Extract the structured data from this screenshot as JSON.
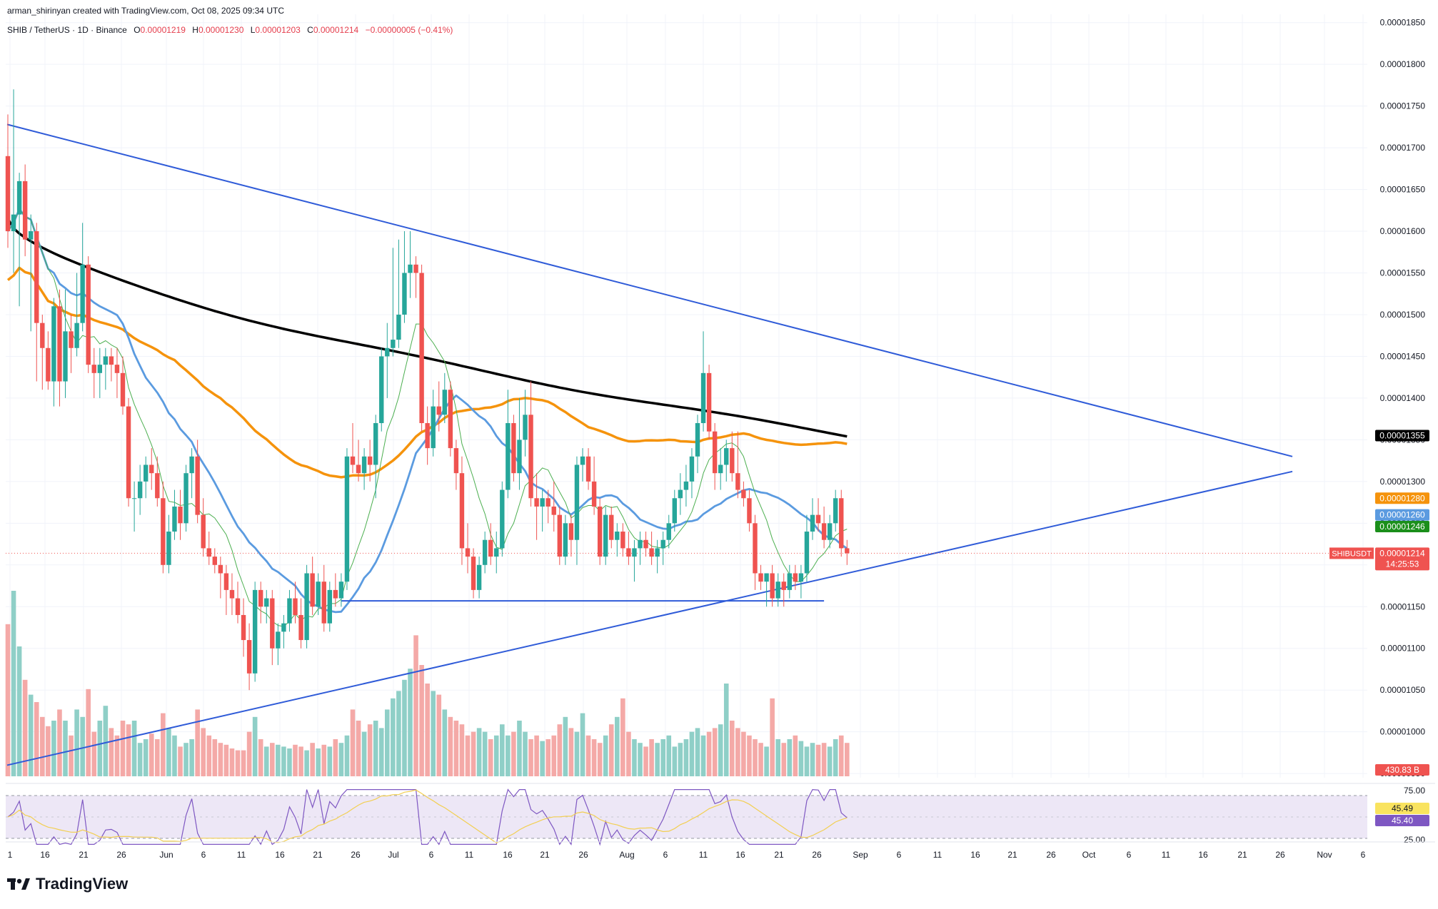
{
  "header": {
    "credit": "arman_shirinyan created with TradingView.com, Oct 08, 2025 09:34 UTC",
    "symbol": "SHIB / TetherUS · 1D · Binance",
    "ohlc": {
      "o_label": "O",
      "o": "0.00001219",
      "h_label": "H",
      "h": "0.00001230",
      "l_label": "L",
      "l": "0.00001203",
      "c_label": "C",
      "c": "0.00001214",
      "change": "−0.00000005 (−0.41%)"
    }
  },
  "brand": {
    "name": "TradingView"
  },
  "colors": {
    "up": "#26a69a",
    "down": "#ef5350",
    "vol_up": "#8fcfc7",
    "vol_down": "#f4a9a7",
    "ma200": "#000000",
    "ma100": "#f5930c",
    "ma50": "#5b9be0",
    "ma20": "#4caf50",
    "trend": "#2f5bd8",
    "rsi": "#7e57c2",
    "rsi_ma": "#f2cf52",
    "rsi_band": "#ede7f6"
  },
  "chart_data": {
    "type": "candlestick",
    "symbol": "SHIBUSDT",
    "timeframe": "1D",
    "exchange": "Binance",
    "ylim": [
      9.45e-06,
      1.86e-05
    ],
    "y_ticks": [
      "0.00001850",
      "0.00001800",
      "0.00001750",
      "0.00001700",
      "0.00001650",
      "0.00001600",
      "0.00001550",
      "0.00001500",
      "0.00001450",
      "0.00001400",
      "0.00001350",
      "0.00001300",
      "0.00001250",
      "0.00001200",
      "0.00001150",
      "0.00001100",
      "0.00001050",
      "0.00001000",
      "0.00000950"
    ],
    "x_ticks": [
      "1",
      "16",
      "21",
      "26",
      "Jun",
      "6",
      "11",
      "16",
      "21",
      "26",
      "Jul",
      "6",
      "11",
      "16",
      "21",
      "26",
      "Aug",
      "6",
      "11",
      "16",
      "21",
      "26",
      "Sep",
      "6",
      "11",
      "16",
      "21",
      "26",
      "Oct",
      "6",
      "11",
      "16",
      "21",
      "26",
      "Nov",
      "6"
    ],
    "price_badges": [
      {
        "label": "0.00001355",
        "value": 1.355e-05,
        "color": "#000000"
      },
      {
        "label": "0.00001280",
        "value": 1.28e-05,
        "color": "#f5930c"
      },
      {
        "label": "0.00001260",
        "value": 1.26e-05,
        "color": "#5b9be0"
      },
      {
        "label": "0.00001246",
        "value": 1.246e-05,
        "color": "#1b8f1b"
      }
    ],
    "last_price": {
      "symbol": "SHIBUSDT",
      "price": "0.00001214",
      "value": 1.214e-05,
      "countdown": "14:25:53"
    },
    "volume_label": "430.83 B",
    "candles": [
      {
        "o": 1.69e-05,
        "h": 1.74e-05,
        "l": 1.58e-05,
        "c": 1.6e-05
      },
      {
        "o": 1.6e-05,
        "h": 1.77e-05,
        "l": 1.55e-05,
        "c": 1.62e-05
      },
      {
        "o": 1.62e-05,
        "h": 1.67e-05,
        "l": 1.51e-05,
        "c": 1.66e-05
      },
      {
        "o": 1.66e-05,
        "h": 1.68e-05,
        "l": 1.57e-05,
        "c": 1.59e-05
      },
      {
        "o": 1.59e-05,
        "h": 1.62e-05,
        "l": 1.48e-05,
        "c": 1.6e-05
      },
      {
        "o": 1.6e-05,
        "h": 1.61e-05,
        "l": 1.42e-05,
        "c": 1.49e-05
      },
      {
        "o": 1.49e-05,
        "h": 1.5e-05,
        "l": 1.41e-05,
        "c": 1.46e-05
      },
      {
        "o": 1.46e-05,
        "h": 1.48e-05,
        "l": 1.41e-05,
        "c": 1.42e-05
      },
      {
        "o": 1.42e-05,
        "h": 1.52e-05,
        "l": 1.39e-05,
        "c": 1.51e-05
      },
      {
        "o": 1.51e-05,
        "h": 1.53e-05,
        "l": 1.39e-05,
        "c": 1.42e-05
      },
      {
        "o": 1.42e-05,
        "h": 1.53e-05,
        "l": 1.4e-05,
        "c": 1.48e-05
      },
      {
        "o": 1.48e-05,
        "h": 1.5e-05,
        "l": 1.43e-05,
        "c": 1.46e-05
      },
      {
        "o": 1.46e-05,
        "h": 1.55e-05,
        "l": 1.45e-05,
        "c": 1.49e-05
      },
      {
        "o": 1.49e-05,
        "h": 1.61e-05,
        "l": 1.48e-05,
        "c": 1.56e-05
      },
      {
        "o": 1.56e-05,
        "h": 1.57e-05,
        "l": 1.43e-05,
        "c": 1.44e-05
      },
      {
        "o": 1.44e-05,
        "h": 1.46e-05,
        "l": 1.4e-05,
        "c": 1.43e-05
      },
      {
        "o": 1.43e-05,
        "h": 1.46e-05,
        "l": 1.4e-05,
        "c": 1.44e-05
      },
      {
        "o": 1.44e-05,
        "h": 1.46e-05,
        "l": 1.41e-05,
        "c": 1.45e-05
      },
      {
        "o": 1.45e-05,
        "h": 1.46e-05,
        "l": 1.42e-05,
        "c": 1.44e-05
      },
      {
        "o": 1.44e-05,
        "h": 1.46e-05,
        "l": 1.4e-05,
        "c": 1.43e-05
      },
      {
        "o": 1.43e-05,
        "h": 1.45e-05,
        "l": 1.38e-05,
        "c": 1.39e-05
      },
      {
        "o": 1.39e-05,
        "h": 1.4e-05,
        "l": 1.27e-05,
        "c": 1.28e-05
      },
      {
        "o": 1.28e-05,
        "h": 1.3e-05,
        "l": 1.24e-05,
        "c": 1.28e-05
      },
      {
        "o": 1.28e-05,
        "h": 1.32e-05,
        "l": 1.26e-05,
        "c": 1.3e-05
      },
      {
        "o": 1.3e-05,
        "h": 1.33e-05,
        "l": 1.28e-05,
        "c": 1.32e-05
      },
      {
        "o": 1.32e-05,
        "h": 1.34e-05,
        "l": 1.29e-05,
        "c": 1.31e-05
      },
      {
        "o": 1.31e-05,
        "h": 1.33e-05,
        "l": 1.27e-05,
        "c": 1.28e-05
      },
      {
        "o": 1.28e-05,
        "h": 1.3e-05,
        "l": 1.19e-05,
        "c": 1.2e-05
      },
      {
        "o": 1.2e-05,
        "h": 1.26e-05,
        "l": 1.19e-05,
        "c": 1.24e-05
      },
      {
        "o": 1.24e-05,
        "h": 1.29e-05,
        "l": 1.23e-05,
        "c": 1.27e-05
      },
      {
        "o": 1.27e-05,
        "h": 1.29e-05,
        "l": 1.23e-05,
        "c": 1.25e-05
      },
      {
        "o": 1.25e-05,
        "h": 1.32e-05,
        "l": 1.24e-05,
        "c": 1.31e-05
      },
      {
        "o": 1.31e-05,
        "h": 1.34e-05,
        "l": 1.28e-05,
        "c": 1.33e-05
      },
      {
        "o": 1.33e-05,
        "h": 1.35e-05,
        "l": 1.25e-05,
        "c": 1.26e-05
      },
      {
        "o": 1.26e-05,
        "h": 1.28e-05,
        "l": 1.21e-05,
        "c": 1.22e-05
      },
      {
        "o": 1.22e-05,
        "h": 1.24e-05,
        "l": 1.2e-05,
        "c": 1.21e-05
      },
      {
        "o": 1.21e-05,
        "h": 1.22e-05,
        "l": 1.19e-05,
        "c": 1.2e-05
      },
      {
        "o": 1.2e-05,
        "h": 1.21e-05,
        "l": 1.16e-05,
        "c": 1.19e-05
      },
      {
        "o": 1.19e-05,
        "h": 1.2e-05,
        "l": 1.14e-05,
        "c": 1.17e-05
      },
      {
        "o": 1.17e-05,
        "h": 1.19e-05,
        "l": 1.14e-05,
        "c": 1.16e-05
      },
      {
        "o": 1.16e-05,
        "h": 1.18e-05,
        "l": 1.13e-05,
        "c": 1.14e-05
      },
      {
        "o": 1.14e-05,
        "h": 1.16e-05,
        "l": 1.09e-05,
        "c": 1.11e-05
      },
      {
        "o": 1.11e-05,
        "h": 1.13e-05,
        "l": 1.05e-05,
        "c": 1.07e-05
      },
      {
        "o": 1.07e-05,
        "h": 1.18e-05,
        "l": 1.06e-05,
        "c": 1.17e-05
      },
      {
        "o": 1.17e-05,
        "h": 1.18e-05,
        "l": 1.13e-05,
        "c": 1.15e-05
      },
      {
        "o": 1.15e-05,
        "h": 1.17e-05,
        "l": 1.13e-05,
        "c": 1.16e-05
      },
      {
        "o": 1.16e-05,
        "h": 1.17e-05,
        "l": 1.08e-05,
        "c": 1.1e-05
      },
      {
        "o": 1.1e-05,
        "h": 1.13e-05,
        "l": 1.08e-05,
        "c": 1.12e-05
      },
      {
        "o": 1.12e-05,
        "h": 1.14e-05,
        "l": 1.1e-05,
        "c": 1.13e-05
      },
      {
        "o": 1.13e-05,
        "h": 1.17e-05,
        "l": 1.12e-05,
        "c": 1.16e-05
      },
      {
        "o": 1.16e-05,
        "h": 1.18e-05,
        "l": 1.13e-05,
        "c": 1.14e-05
      },
      {
        "o": 1.14e-05,
        "h": 1.16e-05,
        "l": 1.1e-05,
        "c": 1.11e-05
      },
      {
        "o": 1.11e-05,
        "h": 1.2e-05,
        "l": 1.1e-05,
        "c": 1.19e-05
      },
      {
        "o": 1.19e-05,
        "h": 1.21e-05,
        "l": 1.14e-05,
        "c": 1.15e-05
      },
      {
        "o": 1.15e-05,
        "h": 1.19e-05,
        "l": 1.14e-05,
        "c": 1.18e-05
      },
      {
        "o": 1.18e-05,
        "h": 1.2e-05,
        "l": 1.12e-05,
        "c": 1.13e-05
      },
      {
        "o": 1.13e-05,
        "h": 1.18e-05,
        "l": 1.12e-05,
        "c": 1.17e-05
      },
      {
        "o": 1.17e-05,
        "h": 1.19e-05,
        "l": 1.15e-05,
        "c": 1.16e-05
      },
      {
        "o": 1.16e-05,
        "h": 1.19e-05,
        "l": 1.15e-05,
        "c": 1.18e-05
      },
      {
        "o": 1.18e-05,
        "h": 1.34e-05,
        "l": 1.17e-05,
        "c": 1.33e-05
      },
      {
        "o": 1.33e-05,
        "h": 1.37e-05,
        "l": 1.31e-05,
        "c": 1.32e-05
      },
      {
        "o": 1.32e-05,
        "h": 1.35e-05,
        "l": 1.3e-05,
        "c": 1.31e-05
      },
      {
        "o": 1.31e-05,
        "h": 1.34e-05,
        "l": 1.29e-05,
        "c": 1.33e-05
      },
      {
        "o": 1.33e-05,
        "h": 1.35e-05,
        "l": 1.3e-05,
        "c": 1.32e-05
      },
      {
        "o": 1.32e-05,
        "h": 1.38e-05,
        "l": 1.28e-05,
        "c": 1.37e-05
      },
      {
        "o": 1.37e-05,
        "h": 1.46e-05,
        "l": 1.36e-05,
        "c": 1.45e-05
      },
      {
        "o": 1.45e-05,
        "h": 1.49e-05,
        "l": 1.4e-05,
        "c": 1.46e-05
      },
      {
        "o": 1.46e-05,
        "h": 1.58e-05,
        "l": 1.45e-05,
        "c": 1.47e-05
      },
      {
        "o": 1.47e-05,
        "h": 1.59e-05,
        "l": 1.46e-05,
        "c": 1.5e-05
      },
      {
        "o": 1.5e-05,
        "h": 1.6e-05,
        "l": 1.49e-05,
        "c": 1.55e-05
      },
      {
        "o": 1.55e-05,
        "h": 1.6e-05,
        "l": 1.52e-05,
        "c": 1.56e-05
      },
      {
        "o": 1.56e-05,
        "h": 1.57e-05,
        "l": 1.52e-05,
        "c": 1.55e-05
      },
      {
        "o": 1.55e-05,
        "h": 1.56e-05,
        "l": 1.36e-05,
        "c": 1.37e-05
      },
      {
        "o": 1.37e-05,
        "h": 1.39e-05,
        "l": 1.32e-05,
        "c": 1.34e-05
      },
      {
        "o": 1.34e-05,
        "h": 1.41e-05,
        "l": 1.33e-05,
        "c": 1.39e-05
      },
      {
        "o": 1.39e-05,
        "h": 1.42e-05,
        "l": 1.36e-05,
        "c": 1.38e-05
      },
      {
        "o": 1.38e-05,
        "h": 1.43e-05,
        "l": 1.37e-05,
        "c": 1.41e-05
      },
      {
        "o": 1.41e-05,
        "h": 1.42e-05,
        "l": 1.33e-05,
        "c": 1.34e-05
      },
      {
        "o": 1.34e-05,
        "h": 1.35e-05,
        "l": 1.29e-05,
        "c": 1.31e-05
      },
      {
        "o": 1.31e-05,
        "h": 1.33e-05,
        "l": 1.2e-05,
        "c": 1.22e-05
      },
      {
        "o": 1.22e-05,
        "h": 1.25e-05,
        "l": 1.19e-05,
        "c": 1.21e-05
      },
      {
        "o": 1.21e-05,
        "h": 1.22e-05,
        "l": 1.16e-05,
        "c": 1.17e-05
      },
      {
        "o": 1.17e-05,
        "h": 1.21e-05,
        "l": 1.16e-05,
        "c": 1.2e-05
      },
      {
        "o": 1.2e-05,
        "h": 1.24e-05,
        "l": 1.19e-05,
        "c": 1.23e-05
      },
      {
        "o": 1.23e-05,
        "h": 1.25e-05,
        "l": 1.2e-05,
        "c": 1.21e-05
      },
      {
        "o": 1.21e-05,
        "h": 1.24e-05,
        "l": 1.19e-05,
        "c": 1.22e-05
      },
      {
        "o": 1.22e-05,
        "h": 1.3e-05,
        "l": 1.21e-05,
        "c": 1.29e-05
      },
      {
        "o": 1.29e-05,
        "h": 1.41e-05,
        "l": 1.28e-05,
        "c": 1.37e-05
      },
      {
        "o": 1.37e-05,
        "h": 1.38e-05,
        "l": 1.3e-05,
        "c": 1.31e-05
      },
      {
        "o": 1.31e-05,
        "h": 1.4e-05,
        "l": 1.29e-05,
        "c": 1.35e-05
      },
      {
        "o": 1.35e-05,
        "h": 1.41e-05,
        "l": 1.33e-05,
        "c": 1.38e-05
      },
      {
        "o": 1.38e-05,
        "h": 1.42e-05,
        "l": 1.27e-05,
        "c": 1.28e-05
      },
      {
        "o": 1.28e-05,
        "h": 1.31e-05,
        "l": 1.23e-05,
        "c": 1.27e-05
      },
      {
        "o": 1.27e-05,
        "h": 1.29e-05,
        "l": 1.24e-05,
        "c": 1.28e-05
      },
      {
        "o": 1.28e-05,
        "h": 1.29e-05,
        "l": 1.25e-05,
        "c": 1.27e-05
      },
      {
        "o": 1.27e-05,
        "h": 1.3e-05,
        "l": 1.24e-05,
        "c": 1.26e-05
      },
      {
        "o": 1.26e-05,
        "h": 1.27e-05,
        "l": 1.2e-05,
        "c": 1.21e-05
      },
      {
        "o": 1.21e-05,
        "h": 1.26e-05,
        "l": 1.2e-05,
        "c": 1.25e-05
      },
      {
        "o": 1.25e-05,
        "h": 1.26e-05,
        "l": 1.21e-05,
        "c": 1.23e-05
      },
      {
        "o": 1.23e-05,
        "h": 1.33e-05,
        "l": 1.2e-05,
        "c": 1.32e-05
      },
      {
        "o": 1.32e-05,
        "h": 1.34e-05,
        "l": 1.3e-05,
        "c": 1.33e-05
      },
      {
        "o": 1.33e-05,
        "h": 1.34e-05,
        "l": 1.29e-05,
        "c": 1.3e-05
      },
      {
        "o": 1.3e-05,
        "h": 1.33e-05,
        "l": 1.26e-05,
        "c": 1.27e-05
      },
      {
        "o": 1.27e-05,
        "h": 1.28e-05,
        "l": 1.2e-05,
        "c": 1.21e-05
      },
      {
        "o": 1.21e-05,
        "h": 1.27e-05,
        "l": 1.2e-05,
        "c": 1.26e-05
      },
      {
        "o": 1.26e-05,
        "h": 1.27e-05,
        "l": 1.22e-05,
        "c": 1.23e-05
      },
      {
        "o": 1.23e-05,
        "h": 1.25e-05,
        "l": 1.21e-05,
        "c": 1.24e-05
      },
      {
        "o": 1.24e-05,
        "h": 1.25e-05,
        "l": 1.21e-05,
        "c": 1.22e-05
      },
      {
        "o": 1.22e-05,
        "h": 1.24e-05,
        "l": 1.2e-05,
        "c": 1.21e-05
      },
      {
        "o": 1.21e-05,
        "h": 1.23e-05,
        "l": 1.18e-05,
        "c": 1.22e-05
      },
      {
        "o": 1.22e-05,
        "h": 1.24e-05,
        "l": 1.2e-05,
        "c": 1.23e-05
      },
      {
        "o": 1.23e-05,
        "h": 1.24e-05,
        "l": 1.21e-05,
        "c": 1.22e-05
      },
      {
        "o": 1.22e-05,
        "h": 1.24e-05,
        "l": 1.2e-05,
        "c": 1.21e-05
      },
      {
        "o": 1.21e-05,
        "h": 1.23e-05,
        "l": 1.19e-05,
        "c": 1.22e-05
      },
      {
        "o": 1.22e-05,
        "h": 1.24e-05,
        "l": 1.2e-05,
        "c": 1.23e-05
      },
      {
        "o": 1.23e-05,
        "h": 1.26e-05,
        "l": 1.22e-05,
        "c": 1.25e-05
      },
      {
        "o": 1.25e-05,
        "h": 1.29e-05,
        "l": 1.24e-05,
        "c": 1.28e-05
      },
      {
        "o": 1.28e-05,
        "h": 1.31e-05,
        "l": 1.26e-05,
        "c": 1.29e-05
      },
      {
        "o": 1.29e-05,
        "h": 1.32e-05,
        "l": 1.27e-05,
        "c": 1.3e-05
      },
      {
        "o": 1.3e-05,
        "h": 1.34e-05,
        "l": 1.28e-05,
        "c": 1.33e-05
      },
      {
        "o": 1.33e-05,
        "h": 1.38e-05,
        "l": 1.31e-05,
        "c": 1.37e-05
      },
      {
        "o": 1.37e-05,
        "h": 1.48e-05,
        "l": 1.36e-05,
        "c": 1.43e-05
      },
      {
        "o": 1.43e-05,
        "h": 1.44e-05,
        "l": 1.35e-05,
        "c": 1.36e-05
      },
      {
        "o": 1.36e-05,
        "h": 1.37e-05,
        "l": 1.29e-05,
        "c": 1.31e-05
      },
      {
        "o": 1.31e-05,
        "h": 1.34e-05,
        "l": 1.29e-05,
        "c": 1.32e-05
      },
      {
        "o": 1.32e-05,
        "h": 1.35e-05,
        "l": 1.3e-05,
        "c": 1.34e-05
      },
      {
        "o": 1.34e-05,
        "h": 1.36e-05,
        "l": 1.3e-05,
        "c": 1.31e-05
      },
      {
        "o": 1.31e-05,
        "h": 1.36e-05,
        "l": 1.28e-05,
        "c": 1.29e-05
      },
      {
        "o": 1.29e-05,
        "h": 1.3e-05,
        "l": 1.27e-05,
        "c": 1.28e-05
      },
      {
        "o": 1.28e-05,
        "h": 1.29e-05,
        "l": 1.24e-05,
        "c": 1.25e-05
      },
      {
        "o": 1.25e-05,
        "h": 1.26e-05,
        "l": 1.17e-05,
        "c": 1.19e-05
      },
      {
        "o": 1.19e-05,
        "h": 1.2e-05,
        "l": 1.17e-05,
        "c": 1.18e-05
      },
      {
        "o": 1.18e-05,
        "h": 1.19e-05,
        "l": 1.15e-05,
        "c": 1.19e-05
      },
      {
        "o": 1.19e-05,
        "h": 1.2e-05,
        "l": 1.15e-05,
        "c": 1.16e-05
      },
      {
        "o": 1.16e-05,
        "h": 1.19e-05,
        "l": 1.15e-05,
        "c": 1.18e-05
      },
      {
        "o": 1.18e-05,
        "h": 1.19e-05,
        "l": 1.15e-05,
        "c": 1.17e-05
      },
      {
        "o": 1.17e-05,
        "h": 1.2e-05,
        "l": 1.16e-05,
        "c": 1.19e-05
      },
      {
        "o": 1.19e-05,
        "h": 1.2e-05,
        "l": 1.17e-05,
        "c": 1.18e-05
      },
      {
        "o": 1.18e-05,
        "h": 1.2e-05,
        "l": 1.16e-05,
        "c": 1.19e-05
      },
      {
        "o": 1.19e-05,
        "h": 1.26e-05,
        "l": 1.18e-05,
        "c": 1.24e-05
      },
      {
        "o": 1.24e-05,
        "h": 1.28e-05,
        "l": 1.23e-05,
        "c": 1.26e-05
      },
      {
        "o": 1.26e-05,
        "h": 1.28e-05,
        "l": 1.24e-05,
        "c": 1.25e-05
      },
      {
        "o": 1.25e-05,
        "h": 1.27e-05,
        "l": 1.22e-05,
        "c": 1.23e-05
      },
      {
        "o": 1.23e-05,
        "h": 1.26e-05,
        "l": 1.22e-05,
        "c": 1.25e-05
      },
      {
        "o": 1.25e-05,
        "h": 1.29e-05,
        "l": 1.24e-05,
        "c": 1.28e-05
      },
      {
        "o": 1.28e-05,
        "h": 1.29e-05,
        "l": 1.21e-05,
        "c": 1.22e-05
      },
      {
        "o": 1.22e-05,
        "h": 1.23e-05,
        "l": 1.2e-05,
        "c": 1.214e-05
      }
    ],
    "rsi": {
      "label_upper": "75.00",
      "label_lower": "25.00",
      "value": "45.49",
      "ma_value": "45.40"
    }
  }
}
